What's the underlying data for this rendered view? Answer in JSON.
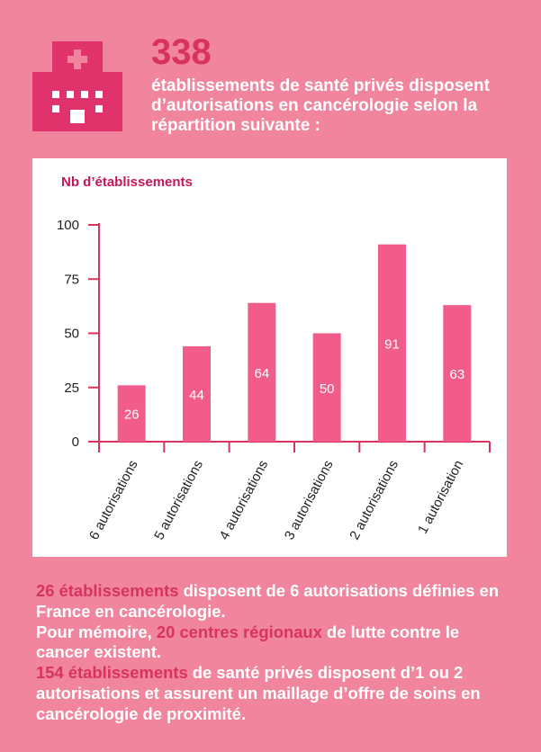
{
  "header": {
    "number": "338",
    "description": "établissements de santé privés disposent d’autorisations en cancérologie selon la répartition suivante :",
    "icon": "hospital-icon"
  },
  "chart_data": {
    "type": "bar",
    "ylabel": "Nb d’établissements",
    "categories": [
      "6 autorisations",
      "5 autorisations",
      "4 autorisations",
      "3 autorisations",
      "2 autorisations",
      "1 autorisation"
    ],
    "values": [
      26,
      44,
      64,
      50,
      91,
      63
    ],
    "ylim": [
      0,
      100
    ],
    "yticks": [
      0,
      25,
      50,
      75,
      100
    ],
    "grid": false,
    "bar_color": "#f25c8a",
    "axis_color": "#d8335f"
  },
  "footer": {
    "p1_hl": "26 établissements",
    "p1_rest": " disposent de 6 autorisations définies en France en cancérologie.",
    "p2_pre": "Pour mémoire, ",
    "p2_hl": "20 centres régionaux",
    "p2_rest": " de lutte contre le cancer existent.",
    "p3_hl": "154 établissements",
    "p3_rest": " de santé privés disposent d’1 ou 2 autorisations et assurent un maillage d’offre de soins en cancérologie de proximité."
  },
  "colors": {
    "background": "#f1859d",
    "highlight": "#d8335f",
    "text": "#ffffff"
  }
}
